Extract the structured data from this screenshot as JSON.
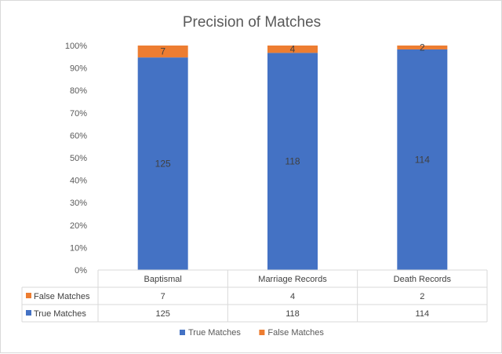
{
  "chart_data": {
    "type": "bar",
    "stacked": "percent",
    "title": "Precision of Matches",
    "categories": [
      "Baptismal",
      "Marriage Records",
      "Death Records"
    ],
    "series": [
      {
        "name": "True Matches",
        "values": [
          125,
          118,
          114
        ],
        "color": "#4472C4"
      },
      {
        "name": "False Matches",
        "values": [
          7,
          4,
          2
        ],
        "color": "#ED7D31"
      }
    ],
    "y_tick_labels": [
      "0%",
      "10%",
      "20%",
      "30%",
      "40%",
      "50%",
      "60%",
      "70%",
      "80%",
      "90%",
      "100%"
    ],
    "ylim": [
      0,
      100
    ],
    "grid": false,
    "legend": "bottom",
    "data_table": true
  }
}
